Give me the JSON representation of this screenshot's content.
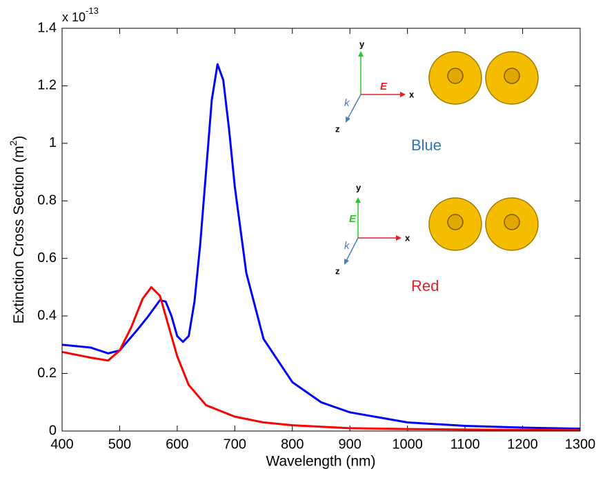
{
  "chart_data": {
    "type": "line",
    "xlabel": "Wavelength (nm)",
    "ylabel": {
      "text": "Extinction Cross Section (m",
      "sup": "2",
      "end": ")"
    },
    "y_multiplier": {
      "base": "x 10",
      "exponent": "-13"
    },
    "xlim": [
      400,
      1300
    ],
    "xticks": [
      400,
      500,
      600,
      700,
      800,
      900,
      1000,
      1100,
      1200,
      1300
    ],
    "ylim": [
      0,
      1.4
    ],
    "yticks": [
      0,
      0.2,
      0.4,
      0.6,
      0.8,
      1,
      1.2,
      1.4
    ],
    "grid": false,
    "series": [
      {
        "color": "#0000ff",
        "x": [
          400,
          450,
          480,
          500,
          530,
          550,
          570,
          580,
          590,
          600,
          610,
          620,
          630,
          640,
          650,
          660,
          670,
          680,
          690,
          700,
          720,
          750,
          800,
          850,
          900,
          1000,
          1100,
          1200,
          1300
        ],
        "values": [
          0.3,
          0.29,
          0.27,
          0.28,
          0.35,
          0.4,
          0.455,
          0.45,
          0.4,
          0.33,
          0.31,
          0.33,
          0.45,
          0.65,
          0.9,
          1.15,
          1.275,
          1.22,
          1.05,
          0.85,
          0.55,
          0.32,
          0.17,
          0.1,
          0.065,
          0.03,
          0.018,
          0.012,
          0.008
        ]
      },
      {
        "color": "#ff0000",
        "x": [
          400,
          450,
          480,
          500,
          520,
          540,
          555,
          570,
          580,
          600,
          620,
          650,
          700,
          750,
          800,
          900,
          1000,
          1100,
          1200,
          1300
        ],
        "values": [
          0.275,
          0.255,
          0.245,
          0.28,
          0.36,
          0.46,
          0.5,
          0.47,
          0.4,
          0.26,
          0.16,
          0.09,
          0.05,
          0.03,
          0.02,
          0.01,
          0.007,
          0.005,
          0.004,
          0.003
        ]
      }
    ],
    "insets": [
      {
        "y": "y",
        "x": "x",
        "z": "z",
        "field": "E",
        "wavevector": "k",
        "label": "Blue"
      },
      {
        "y": "y",
        "x": "x",
        "z": "z",
        "field": "E",
        "wavevector": "k",
        "label": "Red"
      }
    ]
  }
}
